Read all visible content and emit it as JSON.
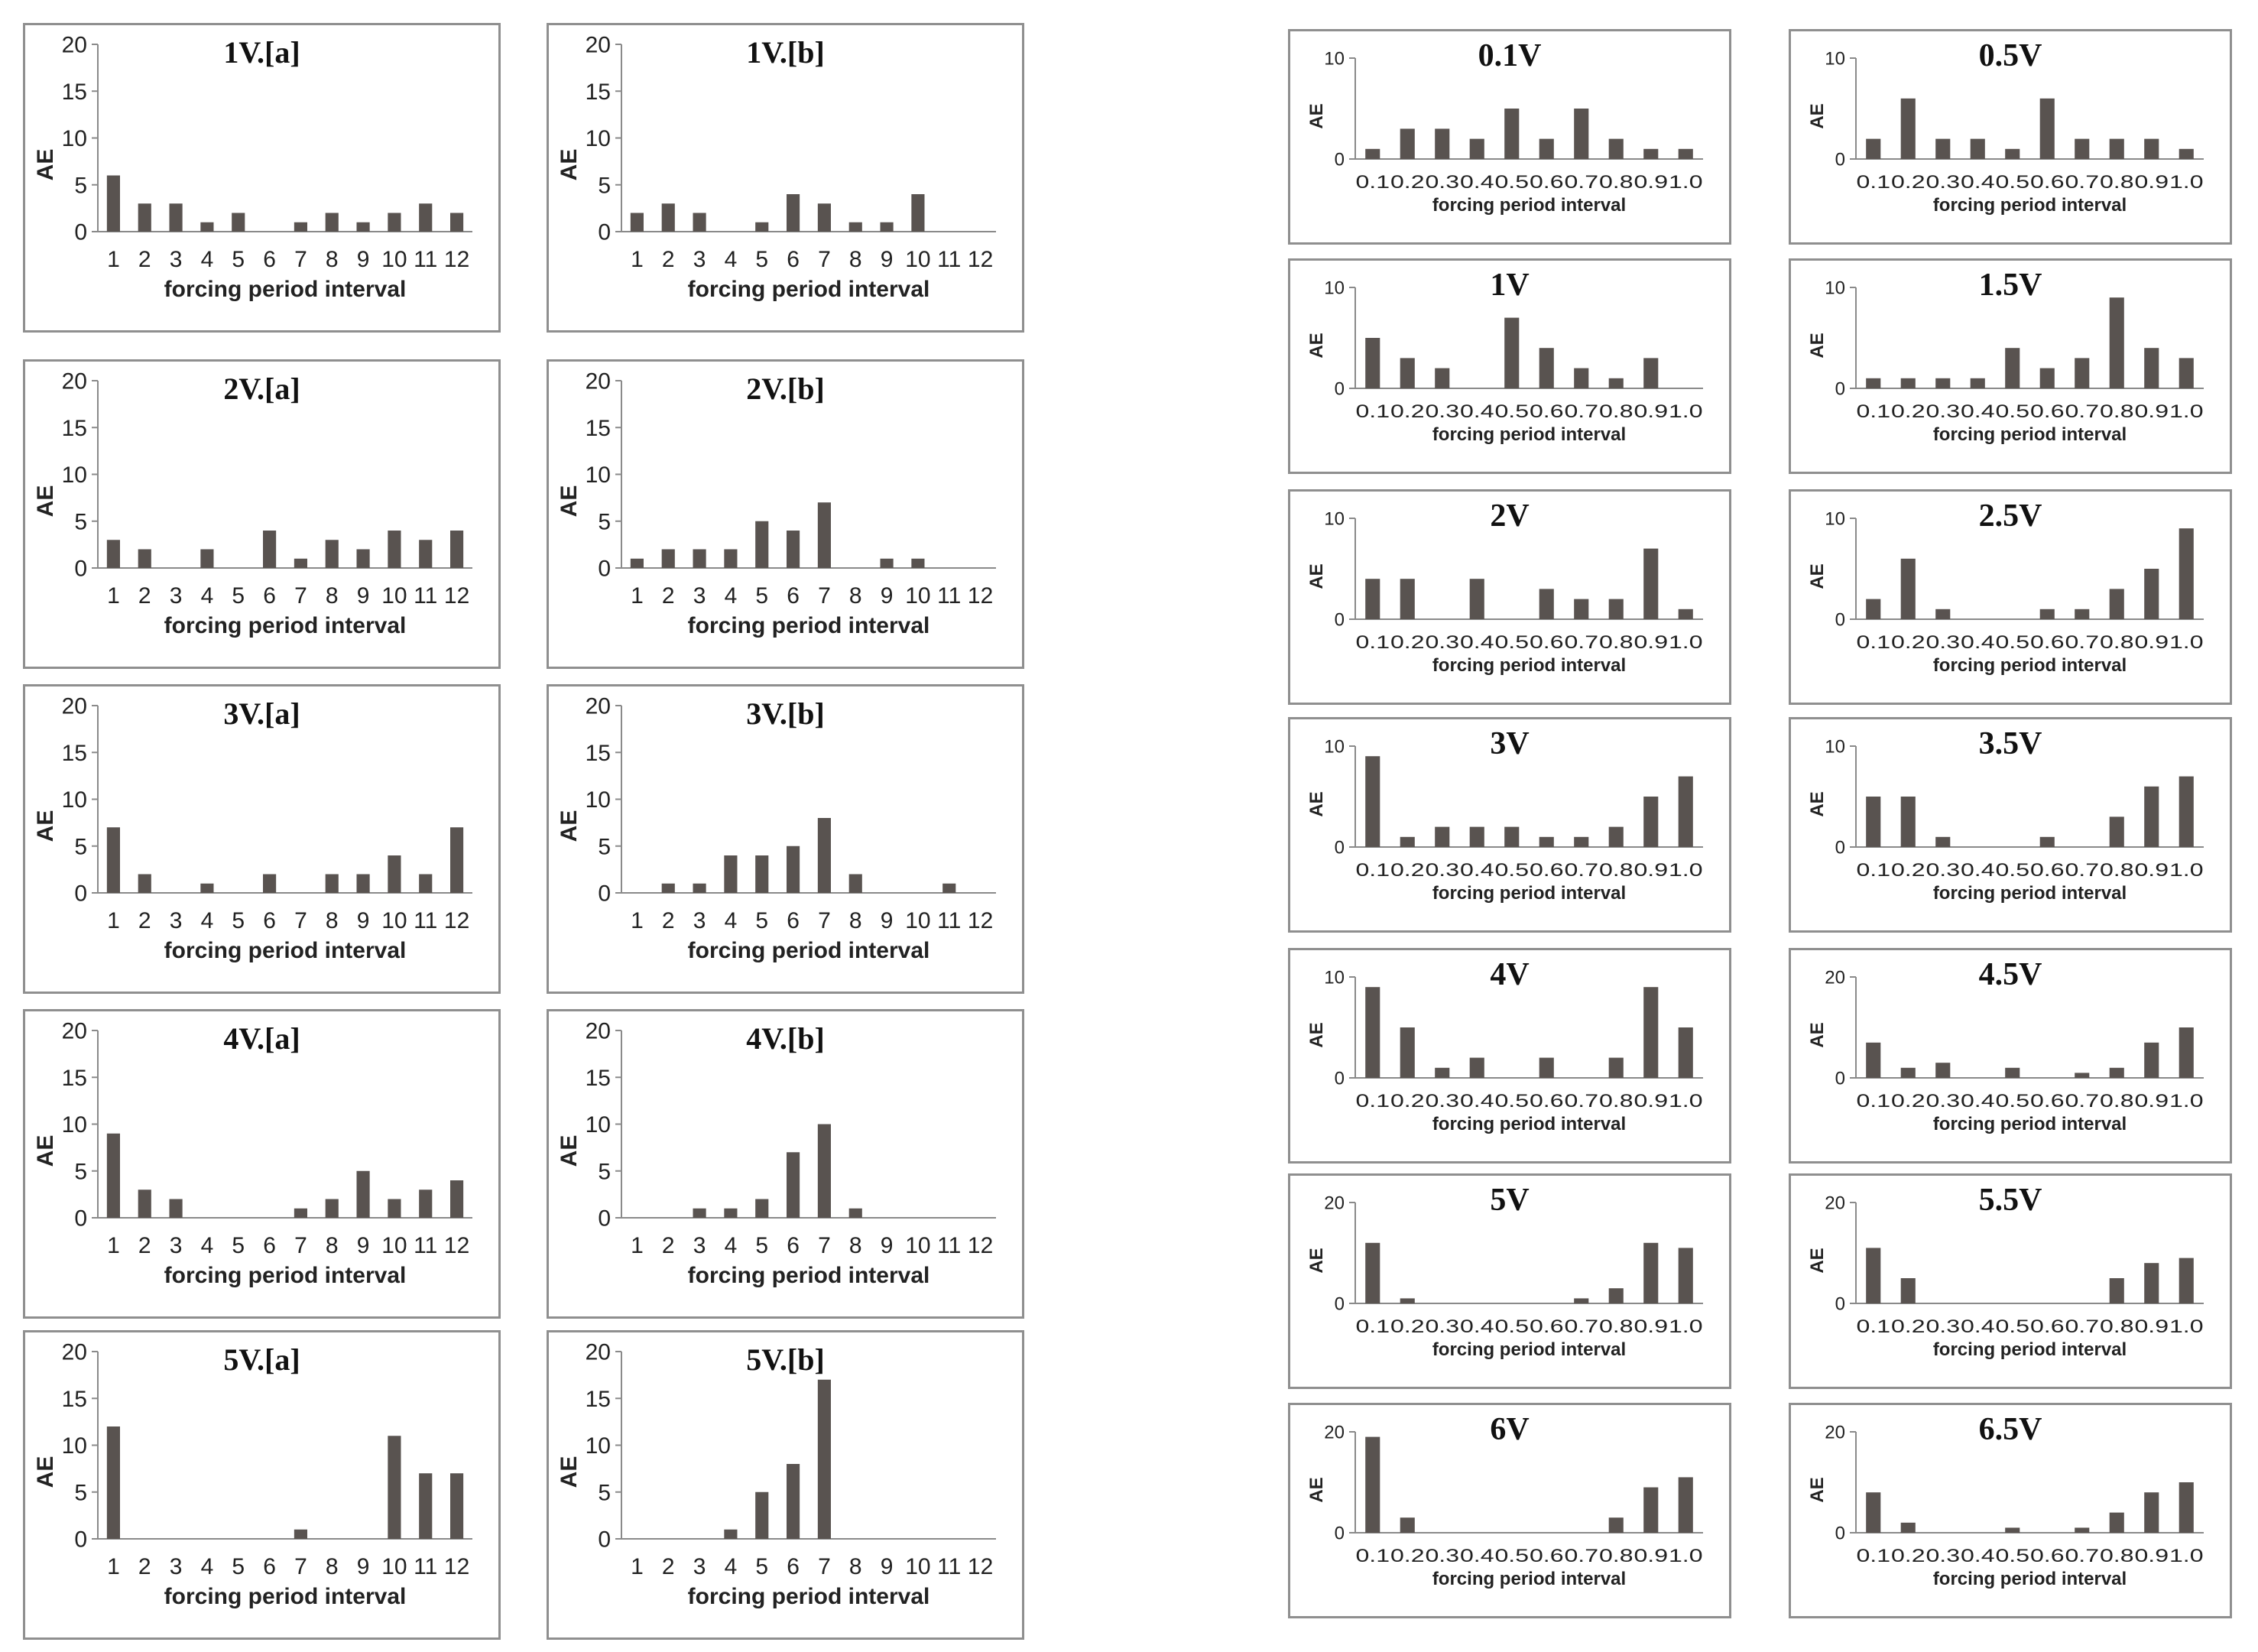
{
  "colors": {
    "bar": "#595350",
    "axis": "#8a8a8a",
    "text": "#222222",
    "border": "#8f8f8f"
  },
  "chart_data": [
    {
      "type": "bar",
      "group": "left",
      "title": "1V.[a]",
      "xlabel": "forcing period interval",
      "ylabel": "AE",
      "ylim": [
        0,
        20
      ],
      "yticks": [
        0,
        5,
        10,
        15,
        20
      ],
      "categories": [
        "1",
        "2",
        "3",
        "4",
        "5",
        "6",
        "7",
        "8",
        "9",
        "10",
        "11",
        "12"
      ],
      "values": [
        6,
        3,
        3,
        1,
        2,
        0,
        1,
        2,
        1,
        2,
        3,
        2
      ]
    },
    {
      "type": "bar",
      "group": "left",
      "title": "1V.[b]",
      "xlabel": "forcing period interval",
      "ylabel": "AE",
      "ylim": [
        0,
        20
      ],
      "yticks": [
        0,
        5,
        10,
        15,
        20
      ],
      "categories": [
        "1",
        "2",
        "3",
        "4",
        "5",
        "6",
        "7",
        "8",
        "9",
        "10",
        "11",
        "12"
      ],
      "values": [
        2,
        3,
        2,
        0,
        1,
        4,
        3,
        1,
        1,
        4,
        0,
        0
      ]
    },
    {
      "type": "bar",
      "group": "left",
      "title": "2V.[a]",
      "xlabel": "forcing period interval",
      "ylabel": "AE",
      "ylim": [
        0,
        20
      ],
      "yticks": [
        0,
        5,
        10,
        15,
        20
      ],
      "categories": [
        "1",
        "2",
        "3",
        "4",
        "5",
        "6",
        "7",
        "8",
        "9",
        "10",
        "11",
        "12"
      ],
      "values": [
        3,
        2,
        0,
        2,
        0,
        4,
        1,
        3,
        2,
        4,
        3,
        4
      ]
    },
    {
      "type": "bar",
      "group": "left",
      "title": "2V.[b]",
      "xlabel": "forcing period interval",
      "ylabel": "AE",
      "ylim": [
        0,
        20
      ],
      "yticks": [
        0,
        5,
        10,
        15,
        20
      ],
      "categories": [
        "1",
        "2",
        "3",
        "4",
        "5",
        "6",
        "7",
        "8",
        "9",
        "10",
        "11",
        "12"
      ],
      "values": [
        1,
        2,
        2,
        2,
        5,
        4,
        7,
        0,
        1,
        1,
        0,
        0
      ]
    },
    {
      "type": "bar",
      "group": "left",
      "title": "3V.[a]",
      "xlabel": "forcing period interval",
      "ylabel": "AE",
      "ylim": [
        0,
        20
      ],
      "yticks": [
        0,
        5,
        10,
        15,
        20
      ],
      "categories": [
        "1",
        "2",
        "3",
        "4",
        "5",
        "6",
        "7",
        "8",
        "9",
        "10",
        "11",
        "12"
      ],
      "values": [
        7,
        2,
        0,
        1,
        0,
        2,
        0,
        2,
        2,
        4,
        2,
        7
      ]
    },
    {
      "type": "bar",
      "group": "left",
      "title": "3V.[b]",
      "xlabel": "forcing period interval",
      "ylabel": "AE",
      "ylim": [
        0,
        20
      ],
      "yticks": [
        0,
        5,
        10,
        15,
        20
      ],
      "categories": [
        "1",
        "2",
        "3",
        "4",
        "5",
        "6",
        "7",
        "8",
        "9",
        "10",
        "11",
        "12"
      ],
      "values": [
        0,
        1,
        1,
        4,
        4,
        5,
        8,
        2,
        0,
        0,
        1,
        0
      ]
    },
    {
      "type": "bar",
      "group": "left",
      "title": "4V.[a]",
      "xlabel": "forcing period interval",
      "ylabel": "AE",
      "ylim": [
        0,
        20
      ],
      "yticks": [
        0,
        5,
        10,
        15,
        20
      ],
      "categories": [
        "1",
        "2",
        "3",
        "4",
        "5",
        "6",
        "7",
        "8",
        "9",
        "10",
        "11",
        "12"
      ],
      "values": [
        9,
        3,
        2,
        0,
        0,
        0,
        1,
        2,
        5,
        2,
        3,
        4
      ]
    },
    {
      "type": "bar",
      "group": "left",
      "title": "4V.[b]",
      "xlabel": "forcing period interval",
      "ylabel": "AE",
      "ylim": [
        0,
        20
      ],
      "yticks": [
        0,
        5,
        10,
        15,
        20
      ],
      "categories": [
        "1",
        "2",
        "3",
        "4",
        "5",
        "6",
        "7",
        "8",
        "9",
        "10",
        "11",
        "12"
      ],
      "values": [
        0,
        0,
        1,
        1,
        2,
        7,
        10,
        1,
        0,
        0,
        0,
        0
      ]
    },
    {
      "type": "bar",
      "group": "left",
      "title": "5V.[a]",
      "xlabel": "forcing period interval",
      "ylabel": "AE",
      "ylim": [
        0,
        20
      ],
      "yticks": [
        0,
        5,
        10,
        15,
        20
      ],
      "categories": [
        "1",
        "2",
        "3",
        "4",
        "5",
        "6",
        "7",
        "8",
        "9",
        "10",
        "11",
        "12"
      ],
      "values": [
        12,
        0,
        0,
        0,
        0,
        0,
        1,
        0,
        0,
        11,
        7,
        7
      ]
    },
    {
      "type": "bar",
      "group": "left",
      "title": "5V.[b]",
      "xlabel": "forcing period interval",
      "ylabel": "AE",
      "ylim": [
        0,
        20
      ],
      "yticks": [
        0,
        5,
        10,
        15,
        20
      ],
      "categories": [
        "1",
        "2",
        "3",
        "4",
        "5",
        "6",
        "7",
        "8",
        "9",
        "10",
        "11",
        "12"
      ],
      "values": [
        0,
        0,
        0,
        1,
        5,
        8,
        17,
        0,
        0,
        0,
        0,
        0
      ]
    },
    {
      "type": "bar",
      "group": "right",
      "title": "0.1V",
      "xlabel": "forcing period interval",
      "ylabel": "AE",
      "ylim": [
        0,
        10
      ],
      "yticks": [
        0,
        10
      ],
      "categories": [
        "0.1",
        "0.2",
        "0.3",
        "0.4",
        "0.5",
        "0.6",
        "0.7",
        "0.8",
        "0.9",
        "1.0"
      ],
      "values": [
        1,
        3,
        3,
        2,
        5,
        2,
        5,
        2,
        1,
        1
      ]
    },
    {
      "type": "bar",
      "group": "right",
      "title": "0.5V",
      "xlabel": "forcing period interval",
      "ylabel": "AE",
      "ylim": [
        0,
        10
      ],
      "yticks": [
        0,
        10
      ],
      "categories": [
        "0.1",
        "0.2",
        "0.3",
        "0.4",
        "0.5",
        "0.6",
        "0.7",
        "0.8",
        "0.9",
        "1.0"
      ],
      "values": [
        2,
        6,
        2,
        2,
        1,
        6,
        2,
        2,
        2,
        1
      ]
    },
    {
      "type": "bar",
      "group": "right",
      "title": "1V",
      "xlabel": "forcing period interval",
      "ylabel": "AE",
      "ylim": [
        0,
        10
      ],
      "yticks": [
        0,
        10
      ],
      "categories": [
        "0.1",
        "0.2",
        "0.3",
        "0.4",
        "0.5",
        "0.6",
        "0.7",
        "0.8",
        "0.9",
        "1.0"
      ],
      "values": [
        5,
        3,
        2,
        0,
        7,
        4,
        2,
        1,
        3,
        0
      ]
    },
    {
      "type": "bar",
      "group": "right",
      "title": "1.5V",
      "xlabel": "forcing period interval",
      "ylabel": "AE",
      "ylim": [
        0,
        10
      ],
      "yticks": [
        0,
        10
      ],
      "categories": [
        "0.1",
        "0.2",
        "0.3",
        "0.4",
        "0.5",
        "0.6",
        "0.7",
        "0.8",
        "0.9",
        "1.0"
      ],
      "values": [
        1,
        1,
        1,
        1,
        4,
        2,
        3,
        9,
        4,
        3
      ]
    },
    {
      "type": "bar",
      "group": "right",
      "title": "2V",
      "xlabel": "forcing period interval",
      "ylabel": "AE",
      "ylim": [
        0,
        10
      ],
      "yticks": [
        0,
        10
      ],
      "categories": [
        "0.1",
        "0.2",
        "0.3",
        "0.4",
        "0.5",
        "0.6",
        "0.7",
        "0.8",
        "0.9",
        "1.0"
      ],
      "values": [
        4,
        4,
        0,
        4,
        0,
        3,
        2,
        2,
        7,
        1
      ]
    },
    {
      "type": "bar",
      "group": "right",
      "title": "2.5V",
      "xlabel": "forcing period interval",
      "ylabel": "AE",
      "ylim": [
        0,
        10
      ],
      "yticks": [
        0,
        10
      ],
      "categories": [
        "0.1",
        "0.2",
        "0.3",
        "0.4",
        "0.5",
        "0.6",
        "0.7",
        "0.8",
        "0.9",
        "1.0"
      ],
      "values": [
        2,
        6,
        1,
        0,
        0,
        1,
        1,
        3,
        5,
        9
      ]
    },
    {
      "type": "bar",
      "group": "right",
      "title": "3V",
      "xlabel": "forcing period interval",
      "ylabel": "AE",
      "ylim": [
        0,
        10
      ],
      "yticks": [
        0,
        10
      ],
      "categories": [
        "0.1",
        "0.2",
        "0.3",
        "0.4",
        "0.5",
        "0.6",
        "0.7",
        "0.8",
        "0.9",
        "1.0"
      ],
      "values": [
        9,
        1,
        2,
        2,
        2,
        1,
        1,
        2,
        5,
        7
      ]
    },
    {
      "type": "bar",
      "group": "right",
      "title": "3.5V",
      "xlabel": "forcing period interval",
      "ylabel": "AE",
      "ylim": [
        0,
        10
      ],
      "yticks": [
        0,
        10
      ],
      "categories": [
        "0.1",
        "0.2",
        "0.3",
        "0.4",
        "0.5",
        "0.6",
        "0.7",
        "0.8",
        "0.9",
        "1.0"
      ],
      "values": [
        5,
        5,
        1,
        0,
        0,
        1,
        0,
        3,
        6,
        7
      ]
    },
    {
      "type": "bar",
      "group": "right",
      "title": "4V",
      "xlabel": "forcing period interval",
      "ylabel": "AE",
      "ylim": [
        0,
        10
      ],
      "yticks": [
        0,
        10
      ],
      "categories": [
        "0.1",
        "0.2",
        "0.3",
        "0.4",
        "0.5",
        "0.6",
        "0.7",
        "0.8",
        "0.9",
        "1.0"
      ],
      "values": [
        9,
        5,
        1,
        2,
        0,
        2,
        0,
        2,
        9,
        5
      ]
    },
    {
      "type": "bar",
      "group": "right",
      "title": "4.5V",
      "xlabel": "forcing period interval",
      "ylabel": "AE",
      "ylim": [
        0,
        20
      ],
      "yticks": [
        0,
        20
      ],
      "categories": [
        "0.1",
        "0.2",
        "0.3",
        "0.4",
        "0.5",
        "0.6",
        "0.7",
        "0.8",
        "0.9",
        "1.0"
      ],
      "values": [
        7,
        2,
        3,
        0,
        2,
        0,
        1,
        2,
        7,
        10
      ]
    },
    {
      "type": "bar",
      "group": "right",
      "title": "5V",
      "xlabel": "forcing period interval",
      "ylabel": "AE",
      "ylim": [
        0,
        20
      ],
      "yticks": [
        0,
        20
      ],
      "categories": [
        "0.1",
        "0.2",
        "0.3",
        "0.4",
        "0.5",
        "0.6",
        "0.7",
        "0.8",
        "0.9",
        "1.0"
      ],
      "values": [
        12,
        1,
        0,
        0,
        0,
        0,
        1,
        3,
        12,
        11
      ]
    },
    {
      "type": "bar",
      "group": "right",
      "title": "5.5V",
      "xlabel": "forcing period interval",
      "ylabel": "AE",
      "ylim": [
        0,
        20
      ],
      "yticks": [
        0,
        20
      ],
      "categories": [
        "0.1",
        "0.2",
        "0.3",
        "0.4",
        "0.5",
        "0.6",
        "0.7",
        "0.8",
        "0.9",
        "1.0"
      ],
      "values": [
        11,
        5,
        0,
        0,
        0,
        0,
        0,
        5,
        8,
        9
      ]
    },
    {
      "type": "bar",
      "group": "right",
      "title": "6V",
      "xlabel": "forcing period interval",
      "ylabel": "AE",
      "ylim": [
        0,
        20
      ],
      "yticks": [
        0,
        20
      ],
      "categories": [
        "0.1",
        "0.2",
        "0.3",
        "0.4",
        "0.5",
        "0.6",
        "0.7",
        "0.8",
        "0.9",
        "1.0"
      ],
      "values": [
        19,
        3,
        0,
        0,
        0,
        0,
        0,
        3,
        9,
        11
      ]
    },
    {
      "type": "bar",
      "group": "right",
      "title": "6.5V",
      "xlabel": "forcing period interval",
      "ylabel": "AE",
      "ylim": [
        0,
        20
      ],
      "yticks": [
        0,
        20
      ],
      "categories": [
        "0.1",
        "0.2",
        "0.3",
        "0.4",
        "0.5",
        "0.6",
        "0.7",
        "0.8",
        "0.9",
        "1.0"
      ],
      "values": [
        8,
        2,
        0,
        0,
        1,
        0,
        1,
        4,
        8,
        10
      ]
    }
  ]
}
